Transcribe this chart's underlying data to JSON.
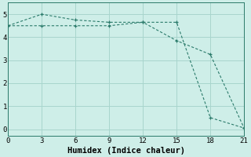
{
  "xlabel": "Humidex (Indice chaleur)",
  "line1_x": [
    0,
    3,
    6,
    9,
    12,
    15,
    18,
    21
  ],
  "line1_y": [
    4.5,
    5.0,
    4.75,
    4.65,
    4.65,
    3.85,
    3.25,
    0.05
  ],
  "line2_x": [
    0,
    3,
    6,
    9,
    12,
    15,
    18,
    21
  ],
  "line2_y": [
    4.5,
    4.5,
    4.5,
    4.5,
    4.65,
    4.65,
    0.5,
    0.05
  ],
  "line_color": "#2a7a6a",
  "bg_color": "#ceeee8",
  "grid_color": "#a8d5cd",
  "xlim": [
    0,
    21
  ],
  "ylim": [
    -0.3,
    5.5
  ],
  "xticks": [
    0,
    3,
    6,
    9,
    12,
    15,
    18,
    21
  ],
  "yticks": [
    0,
    1,
    2,
    3,
    4,
    5
  ],
  "tick_fontsize": 6.5,
  "xlabel_fontsize": 7.5
}
